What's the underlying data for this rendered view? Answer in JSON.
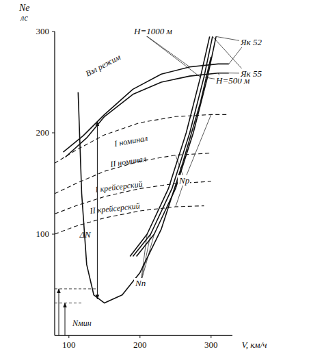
{
  "chart_data": {
    "type": "line",
    "x_label": "V, км/ч",
    "y_label": "Ne",
    "y_unit": "лс",
    "xlim": [
      80,
      330
    ],
    "ylim": [
      0,
      300
    ],
    "xticks": [
      100,
      200,
      300
    ],
    "yticks": [
      100,
      200,
      300
    ],
    "grid": false,
    "series": [
      {
        "name": "Взл режим",
        "color": "#111111",
        "line_style": "solid",
        "x": [
          92,
          120,
          150,
          190,
          230,
          270,
          310,
          325
        ],
        "values": [
          181,
          197,
          218,
          243,
          258,
          265,
          268,
          268
        ]
      },
      {
        "color": "#111111",
        "line_style": "solid",
        "x": [
          95,
          125,
          150,
          190,
          230,
          270,
          310,
          325
        ],
        "values": [
          176,
          195,
          216,
          238,
          250,
          256,
          259,
          259
        ]
      },
      {
        "name": "I номинал",
        "color": "#111111",
        "line_style": "dashed",
        "x": [
          80,
          110,
          150,
          200,
          250,
          300,
          325
        ],
        "values": [
          170,
          183,
          198,
          210,
          216,
          218,
          218
        ]
      },
      {
        "name": "II номинал",
        "color": "#111111",
        "line_style": "dashed",
        "x": [
          80,
          110,
          150,
          200,
          250,
          300
        ],
        "values": [
          140,
          150,
          162,
          172,
          178,
          180
        ]
      },
      {
        "name": "I крейсерский",
        "color": "#111111",
        "line_style": "dashed",
        "x": [
          80,
          110,
          150,
          200,
          250,
          300
        ],
        "values": [
          120,
          128,
          137,
          145,
          150,
          152
        ]
      },
      {
        "name": "II крейсерский",
        "color": "#111111",
        "line_style": "dashed",
        "x": [
          80,
          110,
          150,
          200,
          250,
          290
        ],
        "values": [
          100,
          108,
          116,
          123,
          127,
          128
        ]
      },
      {
        "color": "#111111",
        "line_style": "solid",
        "x": [
          113,
          118,
          125,
          135,
          150,
          175,
          200,
          230,
          260,
          285,
          300
        ],
        "values": [
          240,
          140,
          70,
          40,
          32,
          40,
          62,
          105,
          170,
          230,
          275
        ]
      },
      {
        "color": "#111111",
        "line_style": "solid",
        "x": [
          186,
          210,
          240,
          265,
          285,
          298
        ],
        "values": [
          78,
          100,
          145,
          200,
          255,
          295
        ]
      },
      {
        "color": "#111111",
        "line_style": "solid",
        "x": [
          190,
          215,
          245,
          270,
          290,
          302
        ],
        "values": [
          78,
          100,
          145,
          200,
          255,
          295
        ]
      },
      {
        "color": "#111111",
        "line_style": "solid",
        "x": [
          195,
          220,
          250,
          275,
          295,
          307
        ],
        "values": [
          78,
          100,
          145,
          200,
          255,
          295
        ]
      }
    ],
    "labels": [
      "Nр",
      "Nп",
      "Н=1000 м",
      "Н=500 м",
      "Як 52",
      "Як 55"
    ],
    "delta_n": {
      "label": "ΔN",
      "x": 140,
      "from": 36,
      "to": 211
    },
    "n_min": {
      "label": "Nмин",
      "values": [
        46,
        32
      ]
    }
  }
}
